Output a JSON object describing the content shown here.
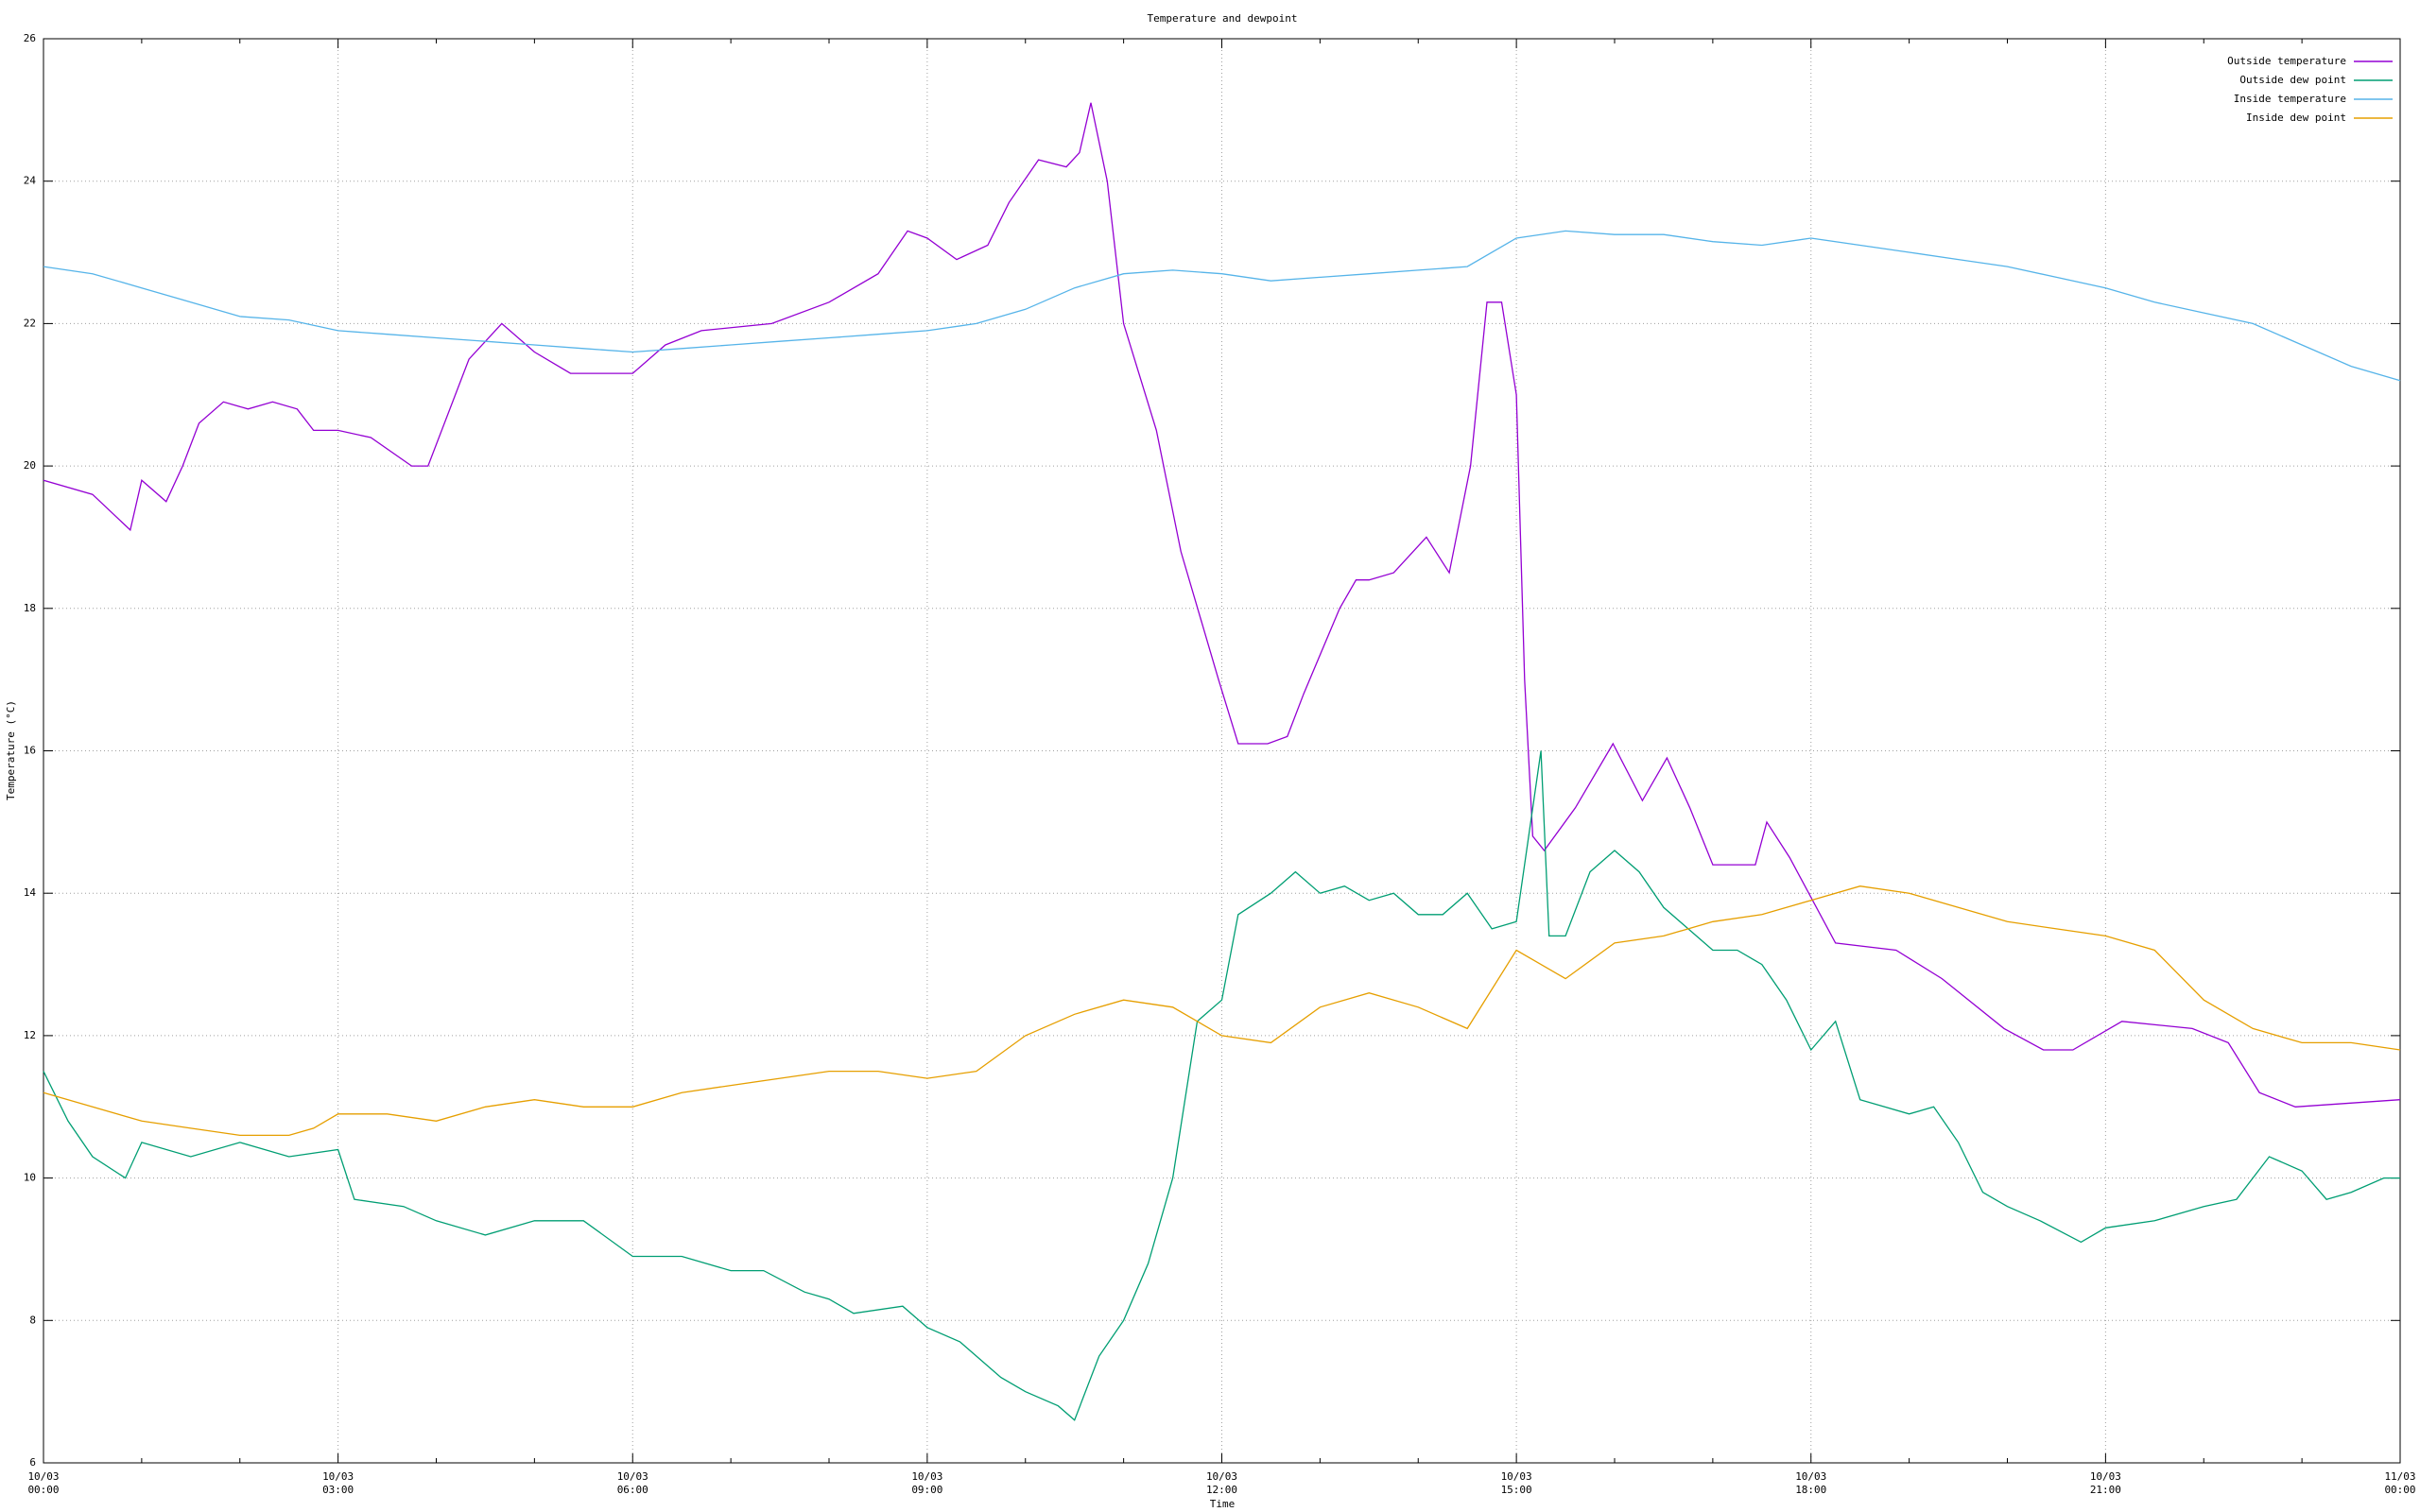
{
  "chart_data": {
    "type": "line",
    "title": "Temperature and dewpoint",
    "x_label": "Time",
    "y_label": "Temperature (°C)",
    "xlim": [
      "10/03 00:00",
      "11/03 00:00"
    ],
    "xticks": [
      {
        "value": "10/03 00:00",
        "label": [
          "10/03",
          "00:00"
        ]
      },
      {
        "value": "10/03 03:00",
        "label": [
          "10/03",
          "03:00"
        ]
      },
      {
        "value": "10/03 06:00",
        "label": [
          "10/03",
          "06:00"
        ]
      },
      {
        "value": "10/03 09:00",
        "label": [
          "10/03",
          "09:00"
        ]
      },
      {
        "value": "10/03 12:00",
        "label": [
          "10/03",
          "12:00"
        ]
      },
      {
        "value": "10/03 15:00",
        "label": [
          "10/03",
          "15:00"
        ]
      },
      {
        "value": "10/03 18:00",
        "label": [
          "10/03",
          "18:00"
        ]
      },
      {
        "value": "10/03 21:00",
        "label": [
          "10/03",
          "21:00"
        ]
      },
      {
        "value": "11/03 00:00",
        "label": [
          "11/03",
          "00:00"
        ]
      }
    ],
    "x_minor_intervals": 3,
    "ylim": [
      6,
      26
    ],
    "yticks": [
      6,
      8,
      10,
      12,
      14,
      16,
      18,
      20,
      22,
      24,
      26
    ],
    "grid": true,
    "legend": "top-right",
    "series": [
      {
        "name": "Outside temperature",
        "color": "#9400d3",
        "x": [
          "10/03 00:00",
          "10/03 00:30",
          "10/03 00:53",
          "10/03 01:00",
          "10/03 01:15",
          "10/03 01:25",
          "10/03 01:35",
          "10/03 01:50",
          "10/03 02:05",
          "10/03 02:20",
          "10/03 02:35",
          "10/03 02:45",
          "10/03 03:00",
          "10/03 03:20",
          "10/03 03:45",
          "10/03 03:55",
          "10/03 04:20",
          "10/03 04:40",
          "10/03 05:00",
          "10/03 05:22",
          "10/03 06:00",
          "10/03 06:20",
          "10/03 06:42",
          "10/03 07:25",
          "10/03 08:00",
          "10/03 08:30",
          "10/03 08:48",
          "10/03 09:00",
          "10/03 09:18",
          "10/03 09:37",
          "10/03 09:50",
          "10/03 10:08",
          "10/03 10:25",
          "10/03 10:33",
          "10/03 10:40",
          "10/03 10:50",
          "10/03 11:00",
          "10/03 11:20",
          "10/03 11:35",
          "10/03 11:58",
          "10/03 12:10",
          "10/03 12:28",
          "10/03 12:40",
          "10/03 12:50",
          "10/03 13:12",
          "10/03 13:22",
          "10/03 13:30",
          "10/03 13:45",
          "10/03 14:05",
          "10/03 14:19",
          "10/03 14:32",
          "10/03 14:42",
          "10/03 14:51",
          "10/03 15:00",
          "10/03 15:05",
          "10/03 15:10",
          "10/03 15:17",
          "10/03 15:36",
          "10/03 15:59",
          "10/03 16:17",
          "10/03 16:32",
          "10/03 16:46",
          "10/03 17:00",
          "10/03 17:26",
          "10/03 17:33",
          "10/03 17:47",
          "10/03 18:15",
          "10/03 18:52",
          "10/03 19:20",
          "10/03 19:58",
          "10/03 20:22",
          "10/03 20:40",
          "10/03 21:10",
          "10/03 21:53",
          "10/03 22:15",
          "10/03 22:34",
          "10/03 22:56",
          "11/03 00:00"
        ],
        "values": [
          19.8,
          19.6,
          19.1,
          19.8,
          19.5,
          20.0,
          20.6,
          20.9,
          20.8,
          20.9,
          20.8,
          20.5,
          20.5,
          20.4,
          20.0,
          20.0,
          21.5,
          22.0,
          21.6,
          21.3,
          21.3,
          21.7,
          21.9,
          22.0,
          22.3,
          22.7,
          23.3,
          23.2,
          22.9,
          23.1,
          23.7,
          24.3,
          24.2,
          24.4,
          25.1,
          24.0,
          22.0,
          20.5,
          18.8,
          17.0,
          16.1,
          16.1,
          16.2,
          16.8,
          18.0,
          18.4,
          18.4,
          18.5,
          19.0,
          18.5,
          20.0,
          22.3,
          22.3,
          21.0,
          17.0,
          14.8,
          14.6,
          15.2,
          16.1,
          15.3,
          15.9,
          15.2,
          14.4,
          14.4,
          15.0,
          14.5,
          13.3,
          13.2,
          12.8,
          12.1,
          11.8,
          11.8,
          12.2,
          12.1,
          11.9,
          11.2,
          11.0,
          11.1
        ]
      },
      {
        "name": "Outside dew point",
        "color": "#009e73",
        "x": [
          "10/03 00:00",
          "10/03 00:15",
          "10/03 00:30",
          "10/03 00:50",
          "10/03 01:00",
          "10/03 01:30",
          "10/03 02:00",
          "10/03 02:30",
          "10/03 03:00",
          "10/03 03:10",
          "10/03 03:40",
          "10/03 04:00",
          "10/03 04:30",
          "10/03 05:00",
          "10/03 05:30",
          "10/03 06:00",
          "10/03 06:30",
          "10/03 07:00",
          "10/03 07:20",
          "10/03 07:45",
          "10/03 08:00",
          "10/03 08:15",
          "10/03 08:45",
          "10/03 09:00",
          "10/03 09:20",
          "10/03 09:45",
          "10/03 10:00",
          "10/03 10:20",
          "10/03 10:30",
          "10/03 10:45",
          "10/03 11:00",
          "10/03 11:15",
          "10/03 11:30",
          "10/03 11:45",
          "10/03 12:00",
          "10/03 12:10",
          "10/03 12:30",
          "10/03 12:45",
          "10/03 13:00",
          "10/03 13:15",
          "10/03 13:30",
          "10/03 13:45",
          "10/03 14:00",
          "10/03 14:15",
          "10/03 14:30",
          "10/03 14:45",
          "10/03 15:00",
          "10/03 15:15",
          "10/03 15:20",
          "10/03 15:30",
          "10/03 15:45",
          "10/03 16:00",
          "10/03 16:15",
          "10/03 16:30",
          "10/03 16:45",
          "10/03 17:00",
          "10/03 17:15",
          "10/03 17:30",
          "10/03 17:45",
          "10/03 18:00",
          "10/03 18:15",
          "10/03 18:30",
          "10/03 18:45",
          "10/03 19:00",
          "10/03 19:15",
          "10/03 19:30",
          "10/03 19:45",
          "10/03 20:00",
          "10/03 20:20",
          "10/03 20:45",
          "10/03 21:00",
          "10/03 21:30",
          "10/03 22:00",
          "10/03 22:20",
          "10/03 22:40",
          "10/03 23:00",
          "10/03 23:15",
          "10/03 23:30",
          "10/03 23:50",
          "11/03 00:00"
        ],
        "values": [
          11.5,
          10.8,
          10.3,
          10.0,
          10.5,
          10.3,
          10.5,
          10.3,
          10.4,
          9.7,
          9.6,
          9.4,
          9.2,
          9.4,
          9.4,
          8.9,
          8.9,
          8.7,
          8.7,
          8.4,
          8.3,
          8.1,
          8.2,
          7.9,
          7.7,
          7.2,
          7.0,
          6.8,
          6.6,
          7.5,
          8.0,
          8.8,
          10.0,
          12.2,
          12.5,
          13.7,
          14.0,
          14.3,
          14.0,
          14.1,
          13.9,
          14.0,
          13.7,
          13.7,
          14.0,
          13.5,
          13.6,
          16.0,
          13.4,
          13.4,
          14.3,
          14.6,
          14.3,
          13.8,
          13.5,
          13.2,
          13.2,
          13.0,
          12.5,
          11.8,
          12.2,
          11.1,
          11.0,
          10.9,
          11.0,
          10.5,
          9.8,
          9.6,
          9.4,
          9.1,
          9.3,
          9.4,
          9.6,
          9.7,
          10.3,
          10.1,
          9.7,
          9.8,
          10.0,
          10.0
        ]
      },
      {
        "name": "Inside temperature",
        "color": "#56b4e9",
        "x": [
          "10/03 00:00",
          "10/03 00:30",
          "10/03 01:00",
          "10/03 01:30",
          "10/03 02:00",
          "10/03 02:30",
          "10/03 03:00",
          "10/03 03:30",
          "10/03 04:00",
          "10/03 04:30",
          "10/03 05:00",
          "10/03 05:30",
          "10/03 06:00",
          "10/03 06:30",
          "10/03 07:00",
          "10/03 07:30",
          "10/03 08:00",
          "10/03 08:30",
          "10/03 09:00",
          "10/03 09:30",
          "10/03 10:00",
          "10/03 10:30",
          "10/03 11:00",
          "10/03 11:30",
          "10/03 12:00",
          "10/03 12:30",
          "10/03 13:00",
          "10/03 13:30",
          "10/03 14:00",
          "10/03 14:30",
          "10/03 15:00",
          "10/03 15:30",
          "10/03 16:00",
          "10/03 16:30",
          "10/03 17:00",
          "10/03 17:30",
          "10/03 18:00",
          "10/03 18:30",
          "10/03 19:00",
          "10/03 19:30",
          "10/03 20:00",
          "10/03 20:30",
          "10/03 21:00",
          "10/03 21:30",
          "10/03 22:00",
          "10/03 22:30",
          "10/03 23:00",
          "10/03 23:30",
          "11/03 00:00"
        ],
        "values": [
          22.8,
          22.7,
          22.5,
          22.3,
          22.1,
          22.05,
          21.9,
          21.85,
          21.8,
          21.75,
          21.7,
          21.65,
          21.6,
          21.65,
          21.7,
          21.75,
          21.8,
          21.85,
          21.9,
          22.0,
          22.2,
          22.5,
          22.7,
          22.75,
          22.7,
          22.6,
          22.65,
          22.7,
          22.75,
          22.8,
          23.2,
          23.3,
          23.25,
          23.25,
          23.15,
          23.1,
          23.2,
          23.1,
          23.0,
          22.9,
          22.8,
          22.65,
          22.5,
          22.3,
          22.15,
          22.0,
          21.7,
          21.4,
          21.2
        ]
      },
      {
        "name": "Inside dew point",
        "color": "#e69f00",
        "x": [
          "10/03 00:00",
          "10/03 00:30",
          "10/03 01:00",
          "10/03 01:30",
          "10/03 02:00",
          "10/03 02:30",
          "10/03 02:45",
          "10/03 03:00",
          "10/03 03:30",
          "10/03 04:00",
          "10/03 04:30",
          "10/03 05:00",
          "10/03 05:30",
          "10/03 06:00",
          "10/03 06:30",
          "10/03 07:00",
          "10/03 07:30",
          "10/03 08:00",
          "10/03 08:30",
          "10/03 09:00",
          "10/03 09:30",
          "10/03 10:00",
          "10/03 10:30",
          "10/03 11:00",
          "10/03 11:30",
          "10/03 12:00",
          "10/03 12:30",
          "10/03 13:00",
          "10/03 13:30",
          "10/03 14:00",
          "10/03 14:30",
          "10/03 15:00",
          "10/03 15:30",
          "10/03 16:00",
          "10/03 16:30",
          "10/03 17:00",
          "10/03 17:30",
          "10/03 18:00",
          "10/03 18:30",
          "10/03 19:00",
          "10/03 19:30",
          "10/03 20:00",
          "10/03 20:30",
          "10/03 21:00",
          "10/03 21:30",
          "10/03 22:00",
          "10/03 22:30",
          "10/03 23:00",
          "10/03 23:30",
          "11/03 00:00"
        ],
        "values": [
          11.2,
          11.0,
          10.8,
          10.7,
          10.6,
          10.6,
          10.7,
          10.9,
          10.9,
          10.8,
          11.0,
          11.1,
          11.0,
          11.0,
          11.2,
          11.3,
          11.4,
          11.5,
          11.5,
          11.4,
          11.5,
          12.0,
          12.3,
          12.5,
          12.4,
          12.0,
          11.9,
          12.4,
          12.6,
          12.4,
          12.1,
          13.2,
          12.8,
          13.3,
          13.4,
          13.6,
          13.7,
          13.9,
          14.1,
          14.0,
          13.8,
          13.6,
          13.5,
          13.4,
          13.2,
          12.5,
          12.1,
          11.9,
          11.9,
          11.8
        ]
      }
    ]
  }
}
